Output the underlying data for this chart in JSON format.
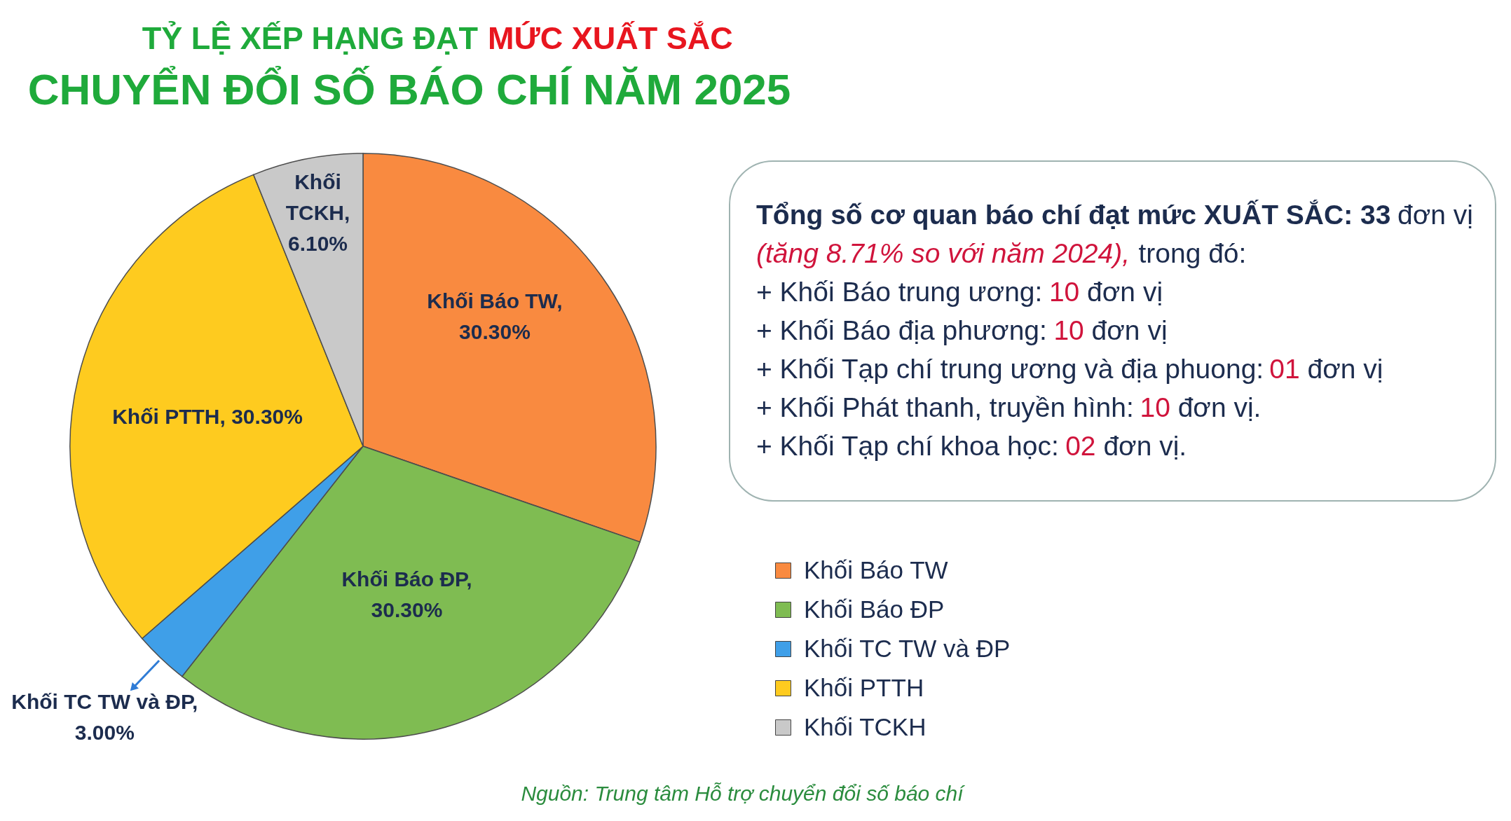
{
  "chart_data": {
    "type": "pie",
    "title": "TỶ LỆ XẾP HẠNG ĐẠT MỨC XUẤT SẮC",
    "subtitle": "CHUYỂN ĐỔI SỐ BÁO CHÍ NĂM 2025",
    "categories": [
      "Khối Báo TW",
      "Khối Báo ĐP",
      "Khối TC TW và ĐP",
      "Khối PTTH",
      "Khối TCKH"
    ],
    "values": [
      30.3,
      30.3,
      3.0,
      30.3,
      6.1
    ],
    "colors": [
      "#f98a40",
      "#7fbc52",
      "#3f9fe8",
      "#fecb1f",
      "#c9c9c9"
    ],
    "value_labels": [
      "Khối Báo TW, 30.30%",
      "Khối Báo ĐP, 30.30%",
      "Khối TC TW và ĐP, 3.00%",
      "Khối PTTH, 30.30%",
      "Khối TCKH, 6.10%"
    ],
    "legend": "right",
    "annotations": [
      "Tổng số cơ quan báo chí đạt mức XUẤT SẮC: 33 đơn vị",
      "(tăng 8.71% so với năm 2024), trong đó:",
      "+ Khối Báo trung ương: 10 đơn vị",
      "+ Khối Báo địa phương: 10 đơn vị",
      "+ Khối Tạp chí trung ương và địa phuong: 01 đơn vị",
      "+ Khối Phát thanh, truyền hình: 10 đơn vị.",
      "+ Khối Tạp chí khoa học: 02 đơn vị.",
      "Nguồn: Trung tâm Hỗ trợ chuyển đổi số báo chí"
    ]
  }
}
